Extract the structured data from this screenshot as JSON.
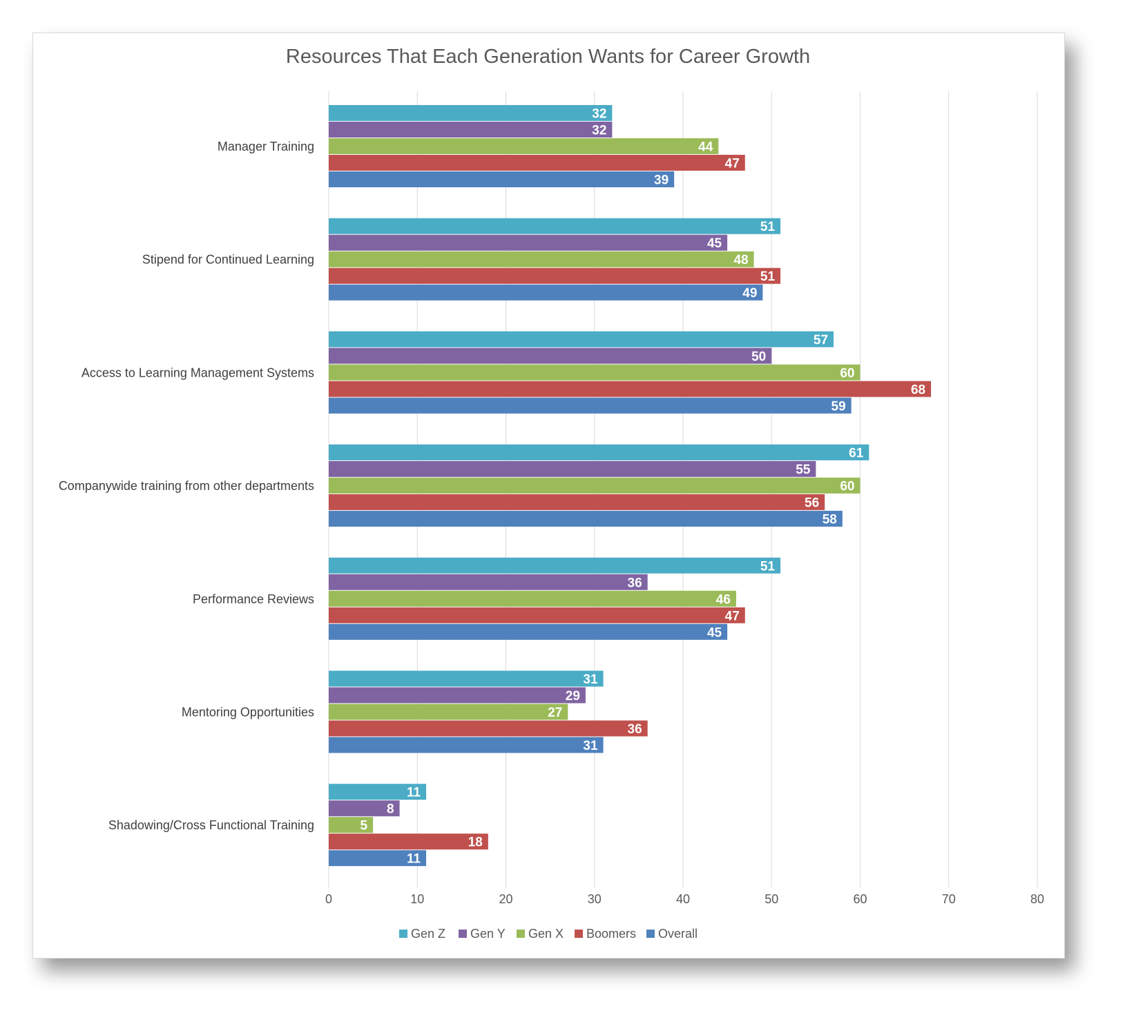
{
  "chart_data": {
    "type": "bar",
    "orientation": "horizontal",
    "title": "Resources That Each Generation Wants for Career Growth",
    "xlabel": "",
    "ylabel": "",
    "xlim": [
      0,
      80
    ],
    "x_ticks": [
      "0",
      "10",
      "20",
      "30",
      "40",
      "50",
      "60",
      "70",
      "80"
    ],
    "grid": "vertical",
    "legend_position": "bottom",
    "categories": [
      "Manager Training",
      "Stipend for Continued Learning",
      "Access to Learning Management Systems",
      "Companywide training from other departments",
      "Performance Reviews",
      "Mentoring Opportunities",
      "Shadowing/Cross Functional Training"
    ],
    "series": [
      {
        "name": "Gen Z",
        "color": "#4BACC6",
        "values": [
          32,
          51,
          57,
          61,
          51,
          31,
          11
        ]
      },
      {
        "name": "Gen Y",
        "color": "#8064A2",
        "values": [
          32,
          45,
          50,
          55,
          36,
          29,
          8
        ]
      },
      {
        "name": "Gen X",
        "color": "#9BBB59",
        "values": [
          44,
          48,
          60,
          60,
          46,
          27,
          5
        ]
      },
      {
        "name": "Boomers",
        "color": "#C0504D",
        "values": [
          47,
          51,
          68,
          56,
          47,
          36,
          18
        ]
      },
      {
        "name": "Overall",
        "color": "#4F81BD",
        "values": [
          39,
          49,
          59,
          58,
          45,
          31,
          11
        ]
      }
    ]
  }
}
